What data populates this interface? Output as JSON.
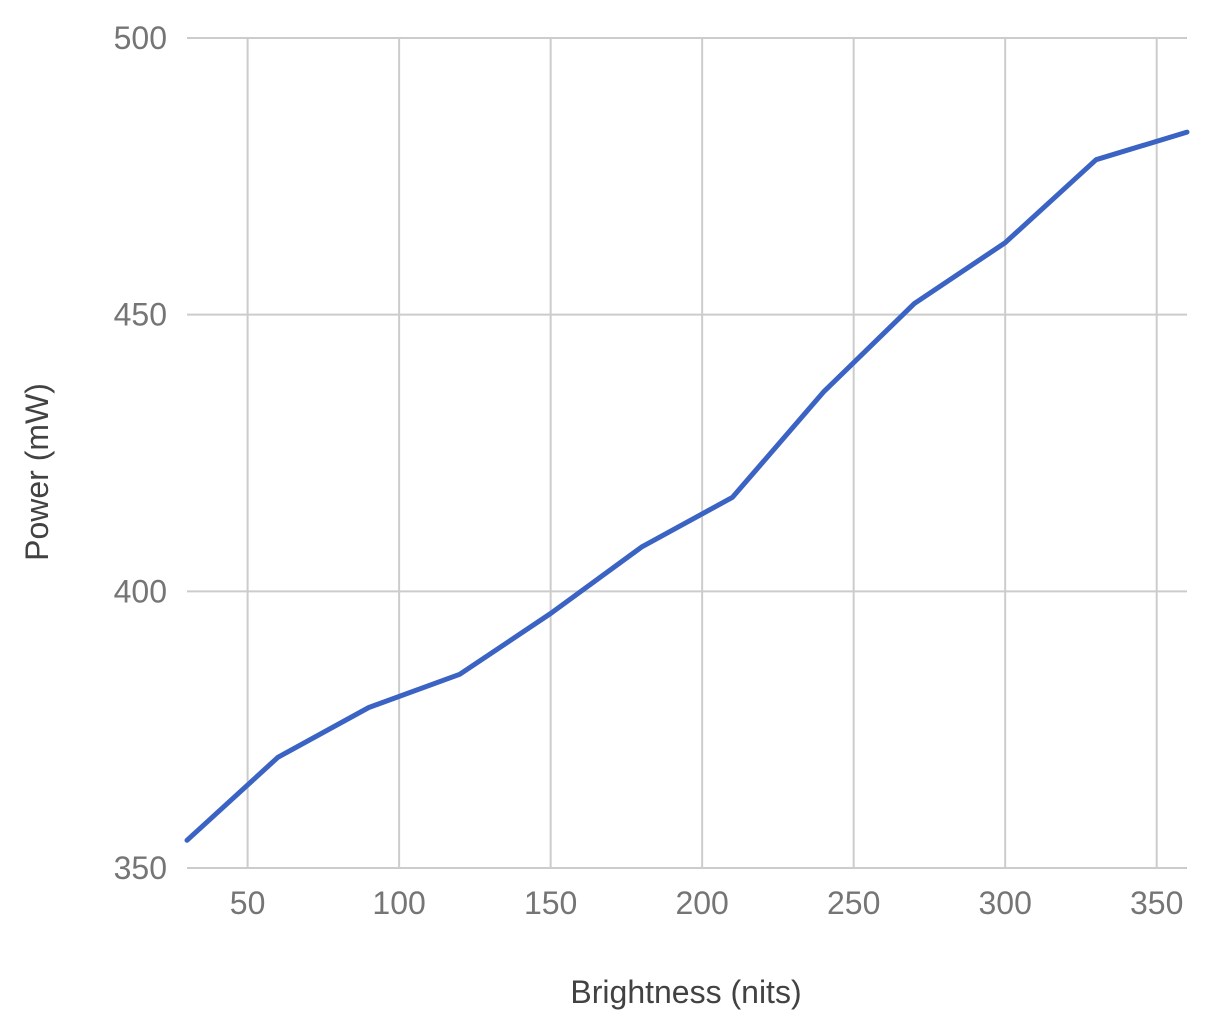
{
  "chart_data": {
    "type": "line",
    "title": "",
    "xlabel": "Brightness (nits)",
    "ylabel": "Power (mW)",
    "xlim": [
      30,
      360
    ],
    "ylim": [
      350,
      500
    ],
    "x_ticks": [
      50,
      100,
      150,
      200,
      250,
      300,
      350
    ],
    "y_ticks": [
      350,
      400,
      450,
      500
    ],
    "grid": true,
    "legend": "none",
    "series": [
      {
        "color": "#3b63c4",
        "x": [
          30,
          60,
          90,
          120,
          150,
          180,
          210,
          240,
          270,
          300,
          330,
          360
        ],
        "y": [
          355,
          370,
          379,
          385,
          396,
          408,
          417,
          436,
          452,
          463,
          478,
          483
        ]
      }
    ]
  }
}
